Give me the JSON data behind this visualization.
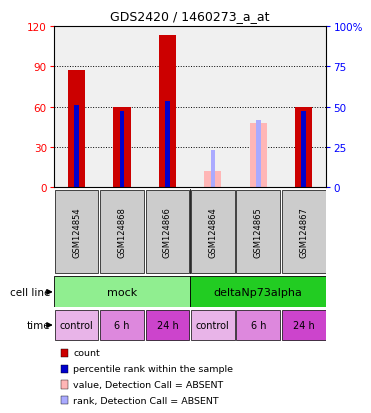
{
  "title": "GDS2420 / 1460273_a_at",
  "samples": [
    "GSM124854",
    "GSM124868",
    "GSM124866",
    "GSM124864",
    "GSM124865",
    "GSM124867"
  ],
  "count_values": [
    87,
    60,
    113,
    null,
    null,
    60
  ],
  "count_absent": [
    null,
    null,
    null,
    12,
    48,
    null
  ],
  "rank_values": [
    61,
    57,
    64,
    null,
    null,
    57
  ],
  "rank_absent": [
    null,
    null,
    null,
    28,
    50,
    null
  ],
  "ylim_left": [
    0,
    120
  ],
  "ylim_right": [
    0,
    100
  ],
  "yticks_left": [
    0,
    30,
    60,
    90,
    120
  ],
  "yticks_right": [
    0,
    25,
    50,
    75,
    100
  ],
  "ytick_labels_right": [
    "0",
    "25",
    "50",
    "75",
    "100%"
  ],
  "cell_line_groups": [
    {
      "label": "mock",
      "span": [
        0,
        3
      ],
      "color": "#90ee90"
    },
    {
      "label": "deltaNp73alpha",
      "span": [
        3,
        6
      ],
      "color": "#22cc22"
    }
  ],
  "time_labels": [
    "control",
    "6 h",
    "24 h",
    "control",
    "6 h",
    "24 h"
  ],
  "time_colors": [
    "#e8b4e8",
    "#dd77dd",
    "#cc44cc",
    "#e8b4e8",
    "#dd77dd",
    "#cc44cc"
  ],
  "bar_color_present": "#cc0000",
  "bar_color_absent": "#ffb6b6",
  "rank_color_present": "#0000cc",
  "rank_color_absent": "#aaaaff",
  "legend_items": [
    {
      "color": "#cc0000",
      "label": "count"
    },
    {
      "color": "#0000cc",
      "label": "percentile rank within the sample"
    },
    {
      "color": "#ffb6b6",
      "label": "value, Detection Call = ABSENT"
    },
    {
      "color": "#aaaaff",
      "label": "rank, Detection Call = ABSENT"
    }
  ],
  "bg_color": "#ffffff",
  "bar_area_bg": "#f0f0f0",
  "sample_box_bg": "#cccccc"
}
